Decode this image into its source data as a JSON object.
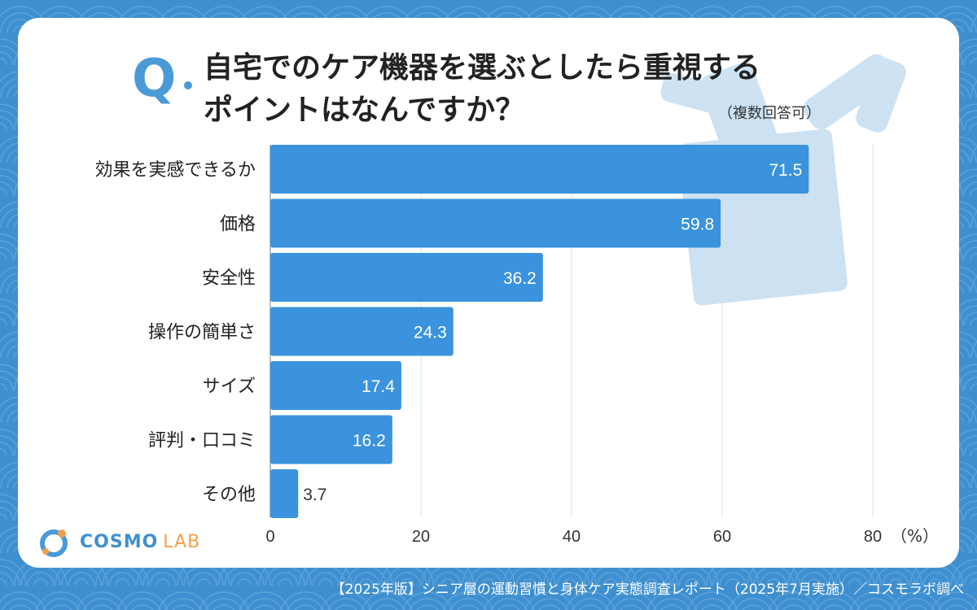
{
  "header": {
    "q_label": "Q",
    "title_line1": "自宅でのケア機器を選ぶとしたら重視する",
    "title_line2": "ポイントはなんですか？",
    "note": "（複数回答可）"
  },
  "chart_data": {
    "type": "bar",
    "orientation": "horizontal",
    "categories": [
      "効果を実感できるか",
      "価格",
      "安全性",
      "操作の簡単さ",
      "サイズ",
      "評判・口コミ",
      "その他"
    ],
    "values": [
      71.5,
      59.8,
      36.2,
      24.3,
      17.4,
      16.2,
      3.7
    ],
    "value_labels": [
      "71.5",
      "59.8",
      "36.2",
      "24.3",
      "17.4",
      "16.2",
      "3.7"
    ],
    "xlim": [
      0,
      80
    ],
    "xticks": [
      0,
      20,
      40,
      60,
      80
    ],
    "tick_labels": [
      "0",
      "20",
      "40",
      "60",
      "80"
    ],
    "unit_label": "（%）",
    "grid": true,
    "bar_color": "#3a93dc"
  },
  "logo": {
    "name": "COSMO",
    "sub": "LAB"
  },
  "footer": "【2025年版】シニア層の運動習慣と身体ケア実態調査レポート（2025年7月実施）／コスモラボ調べ",
  "colors": {
    "background": "#3f8fd0",
    "accent": "#4a9ad8",
    "logo_secondary": "#f0a04a"
  }
}
